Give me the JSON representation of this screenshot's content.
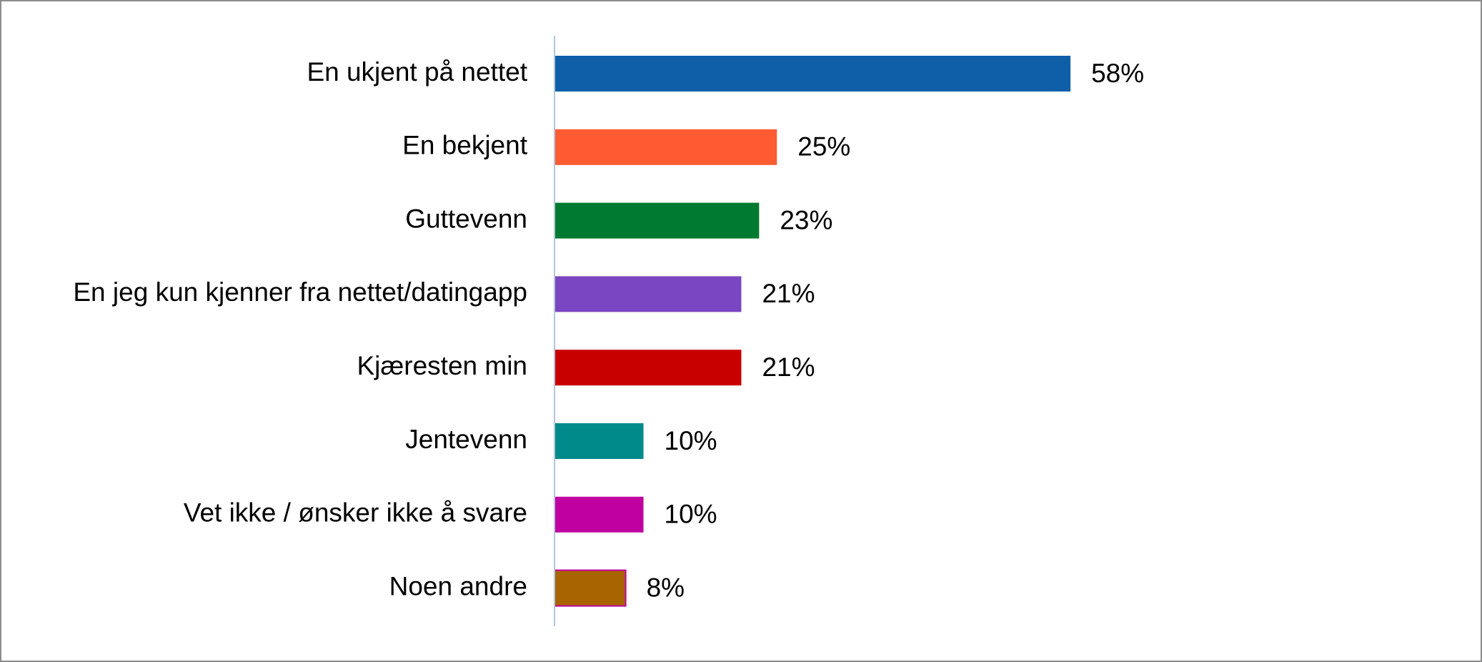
{
  "chart_data": {
    "type": "bar",
    "orientation": "horizontal",
    "categories": [
      "En ukjent på nettet",
      "En bekjent",
      "Guttevenn",
      "En jeg kun kjenner fra nettet/datingapp",
      "Kjæresten min",
      "Jentevenn",
      "Vet ikke / ønsker ikke å svare",
      "Noen andre"
    ],
    "values": [
      58,
      25,
      23,
      21,
      21,
      10,
      10,
      8
    ],
    "value_labels": [
      "58%",
      "25%",
      "23%",
      "21%",
      "21%",
      "10%",
      "10%",
      "8%"
    ],
    "colors": [
      "#0e5ea8",
      "#ff5b33",
      "#007a30",
      "#7b46c1",
      "#c80000",
      "#008a8a",
      "#c000a0",
      "#a86400"
    ]
  }
}
